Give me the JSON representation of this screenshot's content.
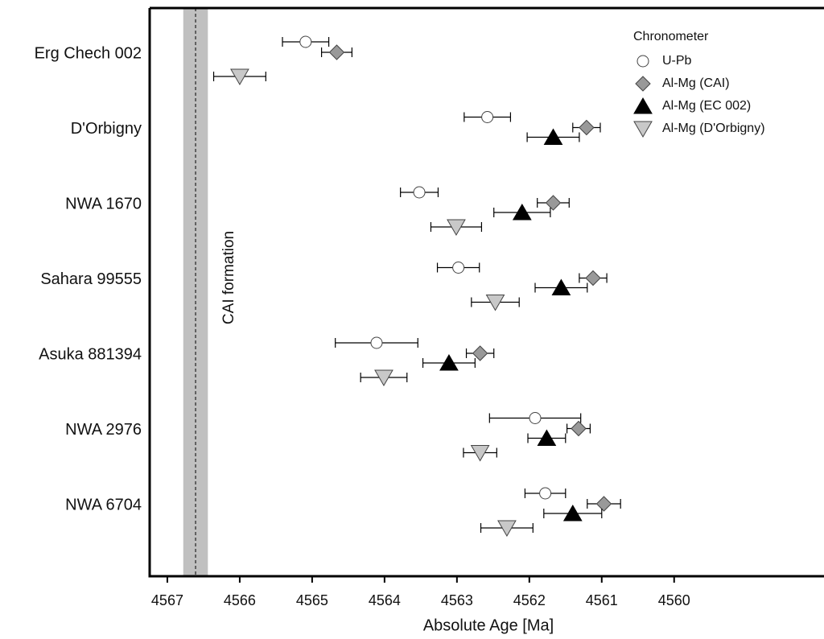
{
  "chart_data": {
    "type": "scatter",
    "x_label": "Absolute Age [Ma]",
    "categories": [
      "Erg Chech 002",
      "D'Orbigny",
      "NWA 1670",
      "Sahara 99555",
      "Asuka 881394",
      "NWA 2976",
      "NWA 6704"
    ],
    "xlim": [
      4567.244,
      4557.93
    ],
    "xticks": [
      4567,
      4566,
      4565,
      4564,
      4563,
      4562,
      4561,
      4560
    ],
    "legend_title": "Chronometer",
    "legend": "upper right",
    "annotation": {
      "text": "CAI formation",
      "value": 4566.61,
      "error": 0.17,
      "color": "#c0c0c0"
    },
    "series": [
      {
        "name": "U-Pb",
        "marker": "circle",
        "color": "#ffffff",
        "values": [
          4565.09,
          4562.58,
          4563.52,
          4562.98,
          4564.11,
          4561.92,
          4561.78
        ],
        "errors": [
          0.32,
          0.32,
          0.26,
          0.29,
          0.57,
          0.63,
          0.28
        ]
      },
      {
        "name": "Al-Mg (CAI)",
        "marker": "diamond",
        "color": "#999999",
        "values": [
          4564.66,
          4561.21,
          4561.67,
          4561.12,
          4562.68,
          4561.32,
          4560.97
        ],
        "errors": [
          0.21,
          0.19,
          0.22,
          0.19,
          0.19,
          0.16,
          0.23
        ]
      },
      {
        "name": "Al-Mg (EC 002)",
        "marker": "triangle-up",
        "color": "#000000",
        "values": [
          null,
          4561.67,
          4562.1,
          4561.56,
          4563.11,
          4561.76,
          4561.4
        ],
        "errors": [
          null,
          0.36,
          0.39,
          0.36,
          0.36,
          0.26,
          0.4
        ]
      },
      {
        "name": "Al-Mg (D'Orbigny)",
        "marker": "triangle-down",
        "color": "#c8c8c8",
        "values": [
          4566.0,
          null,
          4563.01,
          4562.47,
          4564.01,
          4562.68,
          4562.31
        ],
        "errors": [
          0.36,
          null,
          0.35,
          0.33,
          0.32,
          0.23,
          0.36
        ]
      }
    ]
  }
}
